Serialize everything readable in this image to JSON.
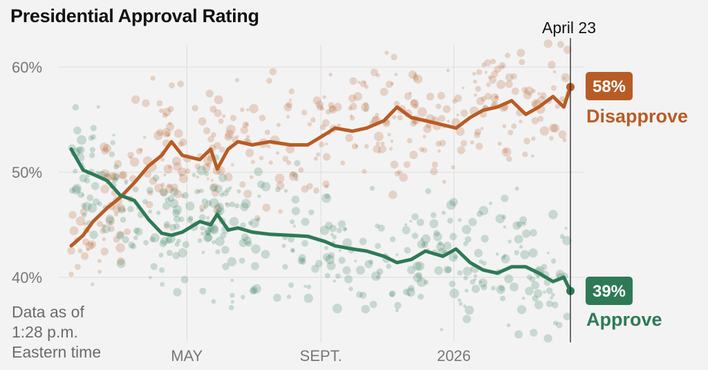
{
  "chart_data": {
    "type": "line",
    "title": "Presidential Approval Rating",
    "note": [
      "Data as of",
      "1:28 p.m.",
      "Eastern time"
    ],
    "y_ticks": [
      {
        "value": 40,
        "label": "40%"
      },
      {
        "value": 50,
        "label": "50%"
      },
      {
        "value": 60,
        "label": "60%"
      }
    ],
    "x_ticks": [
      {
        "date": "2025-05-01",
        "label": "MAY"
      },
      {
        "date": "2025-09-01",
        "label": "SEPT."
      },
      {
        "date": "2026-01-01",
        "label": "2026"
      }
    ],
    "ylim": [
      36,
      62
    ],
    "xlim": [
      "2025-01-20",
      "2026-04-23"
    ],
    "grid": true,
    "current_marker": {
      "date": "2026-04-23",
      "label": "April 23"
    },
    "colors": {
      "disapprove": "#b85c25",
      "approve": "#2e7a56",
      "background": "#f3f3f3"
    },
    "dates": [
      "2025-01-20",
      "2025-01-31",
      "2025-02-09",
      "2025-02-22",
      "2025-03-06",
      "2025-03-19",
      "2025-04-01",
      "2025-04-13",
      "2025-04-22",
      "2025-05-02",
      "2025-05-18",
      "2025-05-28",
      "2025-06-03",
      "2025-06-13",
      "2025-06-22",
      "2025-07-05",
      "2025-07-21",
      "2025-08-09",
      "2025-08-25",
      "2025-09-10",
      "2025-09-19",
      "2025-10-05",
      "2025-10-18",
      "2025-11-03",
      "2025-11-15",
      "2025-11-28",
      "2025-12-11",
      "2025-12-27",
      "2026-01-08",
      "2026-01-21",
      "2026-02-02",
      "2026-02-15",
      "2026-02-28",
      "2026-03-13",
      "2026-03-25",
      "2026-04-07",
      "2026-04-17",
      "2026-04-23"
    ],
    "series": [
      {
        "name": "Disapprove",
        "end_label": "58%",
        "values": [
          43.0,
          44.0,
          45.3,
          46.6,
          47.6,
          49.0,
          50.6,
          51.6,
          52.9,
          51.6,
          51.2,
          52.2,
          50.3,
          52.2,
          52.9,
          52.6,
          52.9,
          52.6,
          52.6,
          53.6,
          54.2,
          53.9,
          54.2,
          54.9,
          56.2,
          55.2,
          54.9,
          54.5,
          54.2,
          55.2,
          55.9,
          56.2,
          56.8,
          55.5,
          56.2,
          57.2,
          56.2,
          58.1
        ]
      },
      {
        "name": "Approve",
        "end_label": "39%",
        "values": [
          52.2,
          50.2,
          49.8,
          49.2,
          47.8,
          47.3,
          45.5,
          44.2,
          44.0,
          44.3,
          45.3,
          45.0,
          46.0,
          44.5,
          44.7,
          44.3,
          44.1,
          44.0,
          43.9,
          43.4,
          43.0,
          42.7,
          42.5,
          42.0,
          41.4,
          41.7,
          42.5,
          42.0,
          42.7,
          41.4,
          40.7,
          40.4,
          41.0,
          41.0,
          40.4,
          39.6,
          40.0,
          38.7
        ]
      }
    ]
  }
}
